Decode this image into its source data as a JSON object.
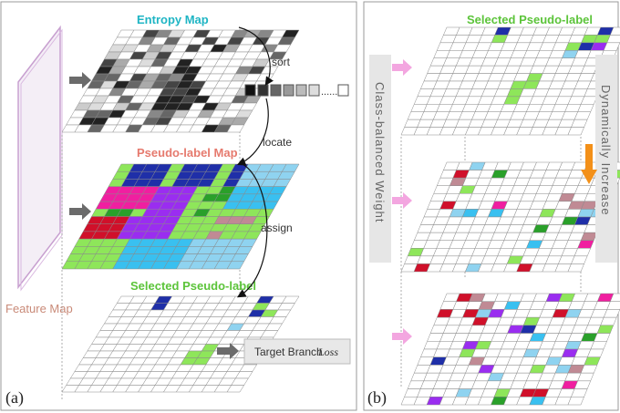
{
  "panel_a": {
    "label": "(a)",
    "feature_map_label": "Feature Map",
    "entropy_map_title": "Entropy Map",
    "pseudo_label_map_title": "Pseudo-label Map",
    "selected_pseudo_label_title": "Selected Pseudo-label",
    "steps": {
      "sort": "sort",
      "locate": "locate",
      "assign": "assign"
    },
    "ellipsis": "......",
    "target_branch_text": "Target Branch",
    "target_branch_loss": "Loss"
  },
  "panel_b": {
    "label": "(b)",
    "selected_pseudo_label_title": "Selected Pseudo-label",
    "left_side_label": "Class-balanced Weight",
    "right_side_label": "Dynamically Increase"
  },
  "colors": {
    "cyan_title": "#1fb5c4",
    "salmon_title": "#e67a6e",
    "green_title": "#5cc43a",
    "navy": "#1f2fa8",
    "green": "#8ee65a",
    "blue": "#39c0f0",
    "lightblue": "#8fd3f0",
    "purple": "#9a2df0",
    "magenta": "#f01fa0",
    "red": "#d0102a",
    "darkgreen": "#2aa02a",
    "rose": "#c08a94",
    "pink_arrow": "#f3a6e0",
    "orange_arrow": "#f39019"
  }
}
